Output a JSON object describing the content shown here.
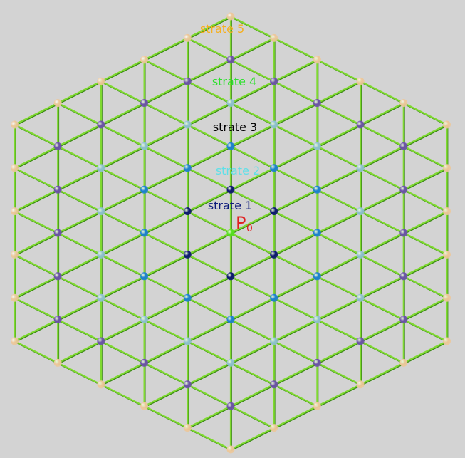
{
  "diagram": {
    "grid_type": "hexagonal-triangular-lattice",
    "rings": 5,
    "center_label": {
      "main": "P",
      "sub": "0"
    },
    "strata": [
      {
        "id": 1,
        "label": "strate 1",
        "color": "#0c1a7a",
        "node_color": "#0a1570"
      },
      {
        "id": 2,
        "label": "strate 2",
        "color": "#5fe0e8",
        "node_color": "#1a7fd0"
      },
      {
        "id": 3,
        "label": "strate 3",
        "color": "#000000",
        "node_color": "#8ec0d0"
      },
      {
        "id": 4,
        "label": "strate 4",
        "color": "#2ee02e",
        "node_color": "#6a50a8"
      },
      {
        "id": 5,
        "label": "strate 5",
        "color": "#f5b020",
        "node_color": "#ecc79a"
      }
    ],
    "center_node_color": "#55e020",
    "center_label_color": "#e02020",
    "edge_color": "#7fd930",
    "edge_shadow_color": "#3c8a16",
    "background": "#d3d3d3"
  }
}
